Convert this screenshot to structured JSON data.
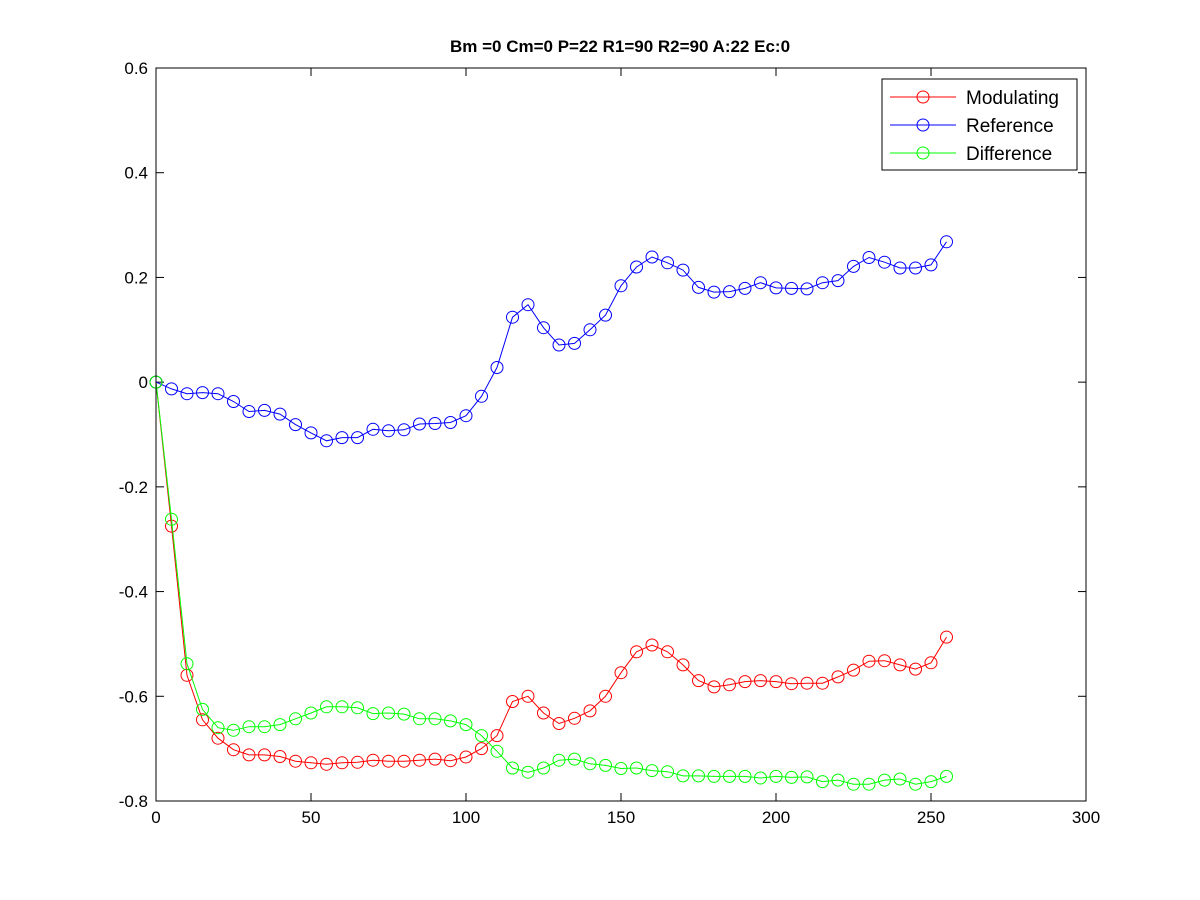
{
  "chart_data": {
    "type": "line",
    "title": "Bm =0  Cm=0  P=22  R1=90  R2=90  A:22  Ec:0",
    "xlabel": "",
    "ylabel": "",
    "xlim": [
      0,
      300
    ],
    "ylim": [
      -0.8,
      0.6
    ],
    "xticks": [
      0,
      50,
      100,
      150,
      200,
      250,
      300
    ],
    "xtick_labels": [
      "0",
      "50",
      "100",
      "150",
      "200",
      "250",
      "300"
    ],
    "yticks": [
      0.6,
      0.4,
      0.2,
      0,
      -0.2,
      -0.4,
      -0.6,
      -0.8
    ],
    "ytick_labels": [
      "0.6",
      "0.4",
      "0.2",
      "0",
      "-0.2",
      "-0.4",
      "-0.6",
      "-0.8"
    ],
    "grid": false,
    "legend_position": "top-right",
    "marker": "circle",
    "x": [
      0,
      5,
      10,
      15,
      20,
      25,
      30,
      35,
      40,
      45,
      50,
      55,
      60,
      65,
      70,
      75,
      80,
      85,
      90,
      95,
      100,
      105,
      110,
      115,
      120,
      125,
      130,
      135,
      140,
      145,
      150,
      155,
      160,
      165,
      170,
      175,
      180,
      185,
      190,
      195,
      200,
      205,
      210,
      215,
      220,
      225,
      230,
      235,
      240,
      245,
      250,
      255
    ],
    "series": [
      {
        "name": "Modulating",
        "color": "#ff0000",
        "values": [
          0,
          -0.275,
          -0.56,
          -0.645,
          -0.68,
          -0.702,
          -0.712,
          -0.712,
          -0.715,
          -0.724,
          -0.727,
          -0.73,
          -0.727,
          -0.726,
          -0.722,
          -0.724,
          -0.724,
          -0.722,
          -0.72,
          -0.723,
          -0.716,
          -0.7,
          -0.675,
          -0.61,
          -0.6,
          -0.632,
          -0.652,
          -0.642,
          -0.628,
          -0.6,
          -0.555,
          -0.515,
          -0.502,
          -0.515,
          -0.54,
          -0.57,
          -0.582,
          -0.578,
          -0.572,
          -0.57,
          -0.572,
          -0.576,
          -0.575,
          -0.575,
          -0.563,
          -0.55,
          -0.533,
          -0.532,
          -0.54,
          -0.548,
          -0.536,
          -0.487
        ]
      },
      {
        "name": "Reference",
        "color": "#0000ff",
        "values": [
          0,
          -0.013,
          -0.022,
          -0.02,
          -0.022,
          -0.037,
          -0.056,
          -0.054,
          -0.061,
          -0.081,
          -0.097,
          -0.112,
          -0.106,
          -0.106,
          -0.09,
          -0.093,
          -0.091,
          -0.08,
          -0.079,
          -0.077,
          -0.064,
          -0.027,
          0.028,
          0.124,
          0.148,
          0.104,
          0.071,
          0.074,
          0.1,
          0.128,
          0.184,
          0.22,
          0.239,
          0.228,
          0.214,
          0.181,
          0.172,
          0.173,
          0.179,
          0.19,
          0.18,
          0.179,
          0.178,
          0.19,
          0.194,
          0.221,
          0.238,
          0.229,
          0.218,
          0.218,
          0.224,
          0.268
        ]
      },
      {
        "name": "Difference",
        "color": "#00ff00",
        "values": [
          0,
          -0.262,
          -0.538,
          -0.625,
          -0.66,
          -0.665,
          -0.658,
          -0.658,
          -0.654,
          -0.643,
          -0.632,
          -0.62,
          -0.62,
          -0.622,
          -0.633,
          -0.632,
          -0.634,
          -0.643,
          -0.643,
          -0.647,
          -0.654,
          -0.675,
          -0.705,
          -0.737,
          -0.745,
          -0.737,
          -0.722,
          -0.72,
          -0.729,
          -0.732,
          -0.738,
          -0.737,
          -0.742,
          -0.744,
          -0.752,
          -0.752,
          -0.753,
          -0.753,
          -0.753,
          -0.756,
          -0.753,
          -0.755,
          -0.754,
          -0.763,
          -0.76,
          -0.768,
          -0.768,
          -0.76,
          -0.758,
          -0.768,
          -0.763,
          -0.753
        ]
      }
    ]
  }
}
